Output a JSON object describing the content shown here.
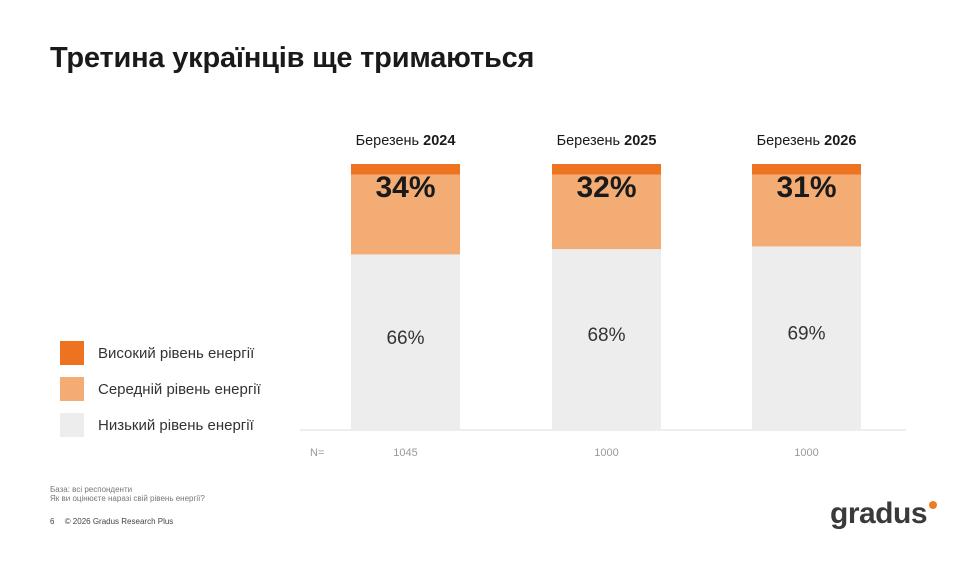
{
  "title": "Третина українців ще тримаються",
  "colors": {
    "high": "#ee7320",
    "medium": "#f2ac74",
    "low": "#ededed"
  },
  "legend": [
    {
      "label": "Високий рівень енергії",
      "color": "#ee7320"
    },
    {
      "label": "Середній рівень енергії",
      "color": "#f2ac74"
    },
    {
      "label": "Низький рівень енергії",
      "color": "#ededed"
    }
  ],
  "n_label": "N=",
  "chart_data": {
    "type": "bar",
    "stacked": true,
    "categories": [
      {
        "prefix": "Березень ",
        "year": "2024"
      },
      {
        "prefix": "Березень ",
        "year": "2025"
      },
      {
        "prefix": "Березень ",
        "year": "2026"
      }
    ],
    "series": [
      {
        "name": "Низький рівень енергії",
        "values": [
          66,
          68,
          69
        ],
        "labels": [
          "66%",
          "68%",
          "69%"
        ]
      },
      {
        "name": "Середній рівень енергії",
        "values": [
          30,
          28,
          27
        ]
      },
      {
        "name": "Високий рівень енергії",
        "values": [
          4,
          4,
          4
        ]
      }
    ],
    "top_labels": [
      "34%",
      "32%",
      "31%"
    ],
    "n_values": [
      "1045",
      "1000",
      "1000"
    ],
    "ylim": [
      0,
      100
    ]
  },
  "footnotes": [
    "База: всі респонденти",
    "Як ви оцінюєте наразі свій рівень енергії?"
  ],
  "footer": {
    "page": "6",
    "copyright": "© 2026 Gradus Research Plus"
  },
  "logo": "gradus"
}
